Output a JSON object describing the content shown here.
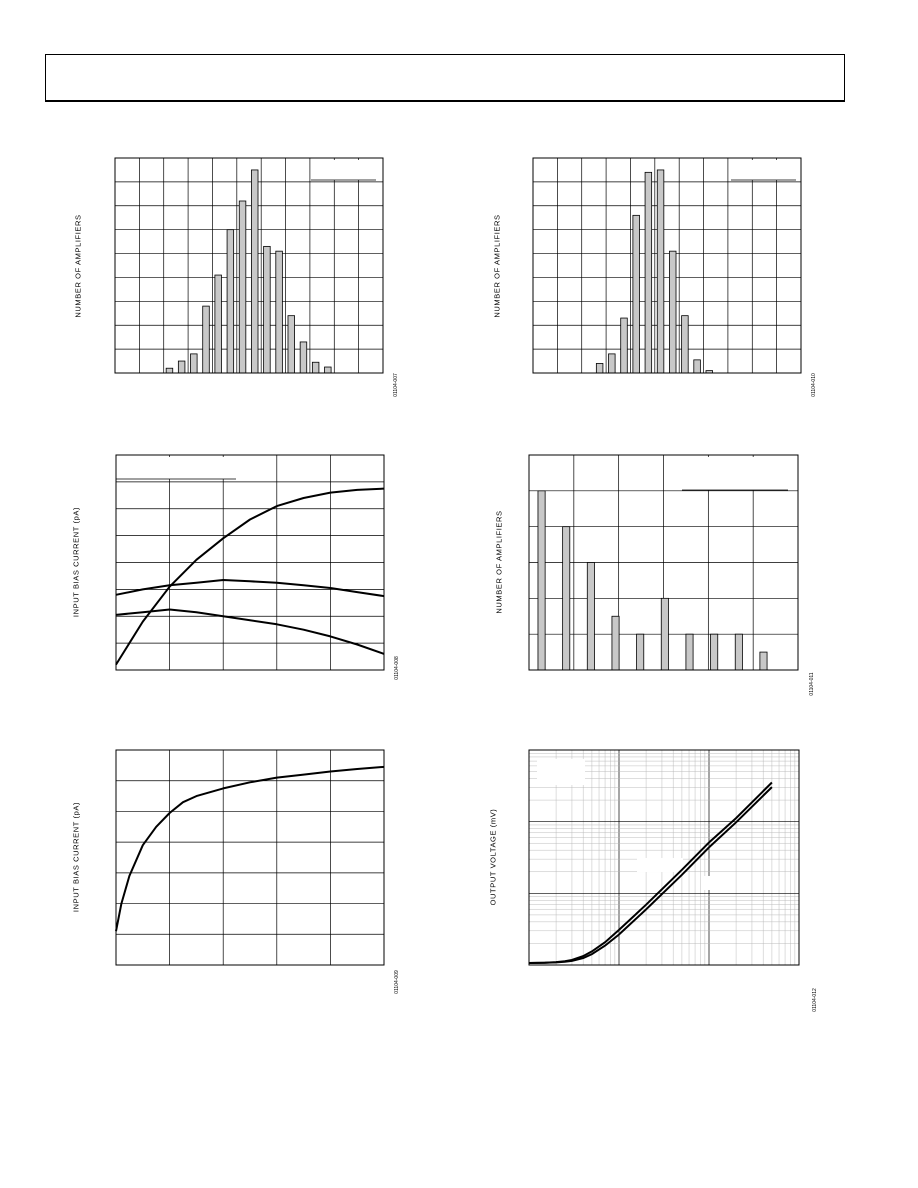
{
  "page": {
    "header": {
      "text": ""
    }
  },
  "chart_data": [
    {
      "id": "fig1",
      "type": "bar",
      "ylabel": "NUMBER OF AMPLIFIERS",
      "figure_number": "01104-007",
      "grid": true,
      "x_divisions": 11,
      "y_divisions": 9,
      "xlim": [
        0,
        11
      ],
      "ylim": [
        0,
        9
      ],
      "bars": [
        {
          "x": 2.1,
          "value": 0.2
        },
        {
          "x": 2.6,
          "value": 0.5
        },
        {
          "x": 3.1,
          "value": 0.8
        },
        {
          "x": 3.6,
          "value": 2.8
        },
        {
          "x": 4.1,
          "value": 4.1
        },
        {
          "x": 4.6,
          "value": 6.0
        },
        {
          "x": 5.1,
          "value": 7.2
        },
        {
          "x": 5.6,
          "value": 8.5
        },
        {
          "x": 6.1,
          "value": 5.3
        },
        {
          "x": 6.6,
          "value": 5.1
        },
        {
          "x": 7.1,
          "value": 2.4
        },
        {
          "x": 7.6,
          "value": 1.3
        },
        {
          "x": 8.1,
          "value": 0.45
        },
        {
          "x": 8.6,
          "value": 0.25
        }
      ]
    },
    {
      "id": "fig2",
      "type": "bar",
      "ylabel": "NUMBER OF AMPLIFIERS",
      "figure_number": "01104-010",
      "grid": true,
      "x_divisions": 11,
      "y_divisions": 9,
      "xlim": [
        0,
        11
      ],
      "ylim": [
        0,
        9
      ],
      "bars": [
        {
          "x": 2.6,
          "value": 0.4
        },
        {
          "x": 3.1,
          "value": 0.8
        },
        {
          "x": 3.6,
          "value": 2.3
        },
        {
          "x": 4.1,
          "value": 6.6
        },
        {
          "x": 4.6,
          "value": 8.4
        },
        {
          "x": 5.1,
          "value": 8.5
        },
        {
          "x": 5.6,
          "value": 5.1
        },
        {
          "x": 6.1,
          "value": 2.4
        },
        {
          "x": 6.6,
          "value": 0.55
        },
        {
          "x": 7.1,
          "value": 0.1
        }
      ]
    },
    {
      "id": "fig3",
      "type": "line",
      "ylabel": "INPUT BIAS CURRENT (pA)",
      "figure_number": "01104-008",
      "grid": true,
      "x_divisions": 5,
      "y_divisions": 8,
      "xlim": [
        0,
        5
      ],
      "ylim": [
        0,
        8
      ],
      "series": [
        {
          "x": [
            0,
            0.5,
            1,
            1.5,
            2,
            2.5,
            3,
            3.5,
            4,
            4.5,
            5
          ],
          "y": [
            0.2,
            1.8,
            3.1,
            4.1,
            4.9,
            5.6,
            6.1,
            6.4,
            6.6,
            6.7,
            6.75
          ]
        },
        {
          "x": [
            0,
            0.5,
            1,
            1.5,
            2,
            2.5,
            3,
            3.5,
            4,
            4.5,
            5
          ],
          "y": [
            2.8,
            3.0,
            3.15,
            3.25,
            3.35,
            3.3,
            3.25,
            3.15,
            3.05,
            2.9,
            2.75
          ]
        },
        {
          "x": [
            0,
            0.5,
            1,
            1.5,
            2,
            2.5,
            3,
            3.5,
            4,
            4.5,
            5
          ],
          "y": [
            2.05,
            2.15,
            2.25,
            2.15,
            2.0,
            1.85,
            1.7,
            1.5,
            1.25,
            0.95,
            0.6
          ]
        }
      ]
    },
    {
      "id": "fig4",
      "type": "bar",
      "ylabel": "NUMBER OF AMPLIFIERS",
      "figure_number": "01104-011",
      "grid": true,
      "x_divisions": 6,
      "y_divisions": 6,
      "xlim": [
        0,
        6
      ],
      "ylim": [
        0,
        6
      ],
      "bars": [
        {
          "x": 0.2,
          "value": 5.0
        },
        {
          "x": 0.75,
          "value": 4.0
        },
        {
          "x": 1.3,
          "value": 3.0
        },
        {
          "x": 1.85,
          "value": 1.5
        },
        {
          "x": 2.4,
          "value": 1.0
        },
        {
          "x": 2.95,
          "value": 2.0
        },
        {
          "x": 3.5,
          "value": 1.0
        },
        {
          "x": 4.05,
          "value": 1.0
        },
        {
          "x": 4.6,
          "value": 1.0
        },
        {
          "x": 5.15,
          "value": 0.5
        }
      ]
    },
    {
      "id": "fig5",
      "type": "line",
      "ylabel": "INPUT BIAS CURRENT (pA)",
      "figure_number": "01104-009",
      "grid": true,
      "x_divisions": 5,
      "y_divisions": 7,
      "xlim": [
        0,
        5
      ],
      "ylim": [
        0,
        7
      ],
      "series": [
        {
          "x": [
            0,
            0.1,
            0.25,
            0.5,
            0.75,
            1,
            1.25,
            1.5,
            2,
            2.5,
            3,
            3.5,
            4,
            4.5,
            5
          ],
          "y": [
            1.1,
            2.0,
            2.9,
            3.9,
            4.5,
            4.95,
            5.3,
            5.5,
            5.75,
            5.95,
            6.1,
            6.2,
            6.3,
            6.38,
            6.45
          ]
        }
      ]
    },
    {
      "id": "fig6",
      "type": "line",
      "ylabel": "OUTPUT VOLTAGE (mV)",
      "figure_number": "01104-012",
      "grid": true,
      "x_scale": "log",
      "y_scale": "log",
      "x_decades": 3,
      "y_decades": 3,
      "series": [
        {
          "x": [
            1,
            1.5,
            2,
            2.5,
            3,
            4,
            5,
            7,
            10,
            20,
            50,
            100,
            200,
            500
          ],
          "y": [
            1.0,
            1.01,
            1.03,
            1.06,
            1.1,
            1.25,
            1.45,
            1.95,
            2.9,
            6.5,
            20,
            48,
            105,
            330
          ]
        },
        {
          "x": [
            1,
            1.5,
            2,
            2.5,
            3,
            4,
            5,
            7,
            10,
            20,
            50,
            100,
            200,
            500
          ],
          "y": [
            1.0,
            1.01,
            1.02,
            1.04,
            1.07,
            1.17,
            1.33,
            1.75,
            2.5,
            5.6,
            17,
            41,
            92,
            285
          ]
        }
      ]
    }
  ]
}
